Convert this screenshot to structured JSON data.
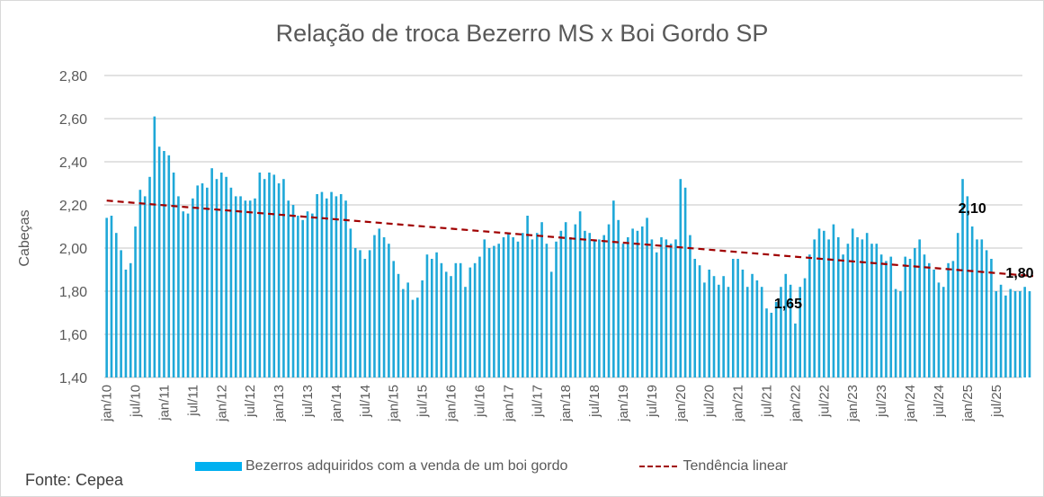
{
  "chart_data": {
    "type": "bar",
    "title": "Relação de troca Bezerro MS x Boi Gordo SP",
    "xlabel": "",
    "ylabel": "Cabeças",
    "ylim": [
      1.4,
      2.8
    ],
    "yticks": [
      "1,40",
      "1,60",
      "1,80",
      "2,00",
      "2,20",
      "2,40",
      "2,60",
      "2,80"
    ],
    "ytick_values": [
      1.4,
      1.6,
      1.8,
      2.0,
      2.2,
      2.4,
      2.6,
      2.8
    ],
    "grid": true,
    "start_month": "jan/10",
    "x_tick_labels": [
      "jan/10",
      "jul/10",
      "jan/11",
      "jul/11",
      "jan/12",
      "jul/12",
      "jan/13",
      "jul/13",
      "jan/14",
      "jul/14",
      "jan/15",
      "jul/15",
      "jan/16",
      "jul/16",
      "jan/17",
      "jul/17",
      "jan/18",
      "jul/18",
      "jan/19",
      "jul/19",
      "jan/20",
      "jul/20",
      "jan/21",
      "jul/21",
      "jan/22",
      "jul/22",
      "jan/23",
      "jul/23",
      "jan/24",
      "jul/24",
      "jan/25",
      "jul/25"
    ],
    "series": [
      {
        "name": "Bezerros adquiridos com a venda de um boi gordo",
        "type": "bar",
        "color": "#00b0f0",
        "values": [
          2.14,
          2.15,
          2.07,
          1.99,
          1.9,
          1.93,
          2.1,
          2.27,
          2.24,
          2.33,
          2.61,
          2.47,
          2.45,
          2.43,
          2.35,
          2.24,
          2.17,
          2.16,
          2.23,
          2.29,
          2.3,
          2.28,
          2.37,
          2.32,
          2.35,
          2.33,
          2.28,
          2.24,
          2.24,
          2.22,
          2.22,
          2.23,
          2.35,
          2.32,
          2.35,
          2.34,
          2.3,
          2.32,
          2.22,
          2.2,
          2.15,
          2.13,
          2.17,
          2.16,
          2.25,
          2.26,
          2.23,
          2.26,
          2.24,
          2.25,
          2.22,
          2.09,
          2.0,
          1.99,
          1.95,
          1.99,
          2.06,
          2.09,
          2.05,
          2.02,
          1.94,
          1.88,
          1.81,
          1.84,
          1.76,
          1.77,
          1.85,
          1.97,
          1.95,
          1.98,
          1.93,
          1.89,
          1.87,
          1.93,
          1.93,
          1.82,
          1.91,
          1.93,
          1.96,
          2.04,
          2.0,
          2.01,
          2.02,
          2.05,
          2.07,
          2.05,
          2.03,
          2.07,
          2.15,
          2.04,
          2.07,
          2.12,
          2.02,
          1.89,
          2.03,
          2.08,
          2.12,
          2.05,
          2.11,
          2.17,
          2.08,
          2.07,
          2.04,
          2.04,
          2.06,
          2.11,
          2.22,
          2.13,
          2.02,
          2.05,
          2.09,
          2.08,
          2.1,
          2.14,
          2.04,
          1.98,
          2.05,
          2.04,
          2.02,
          2.04,
          2.32,
          2.28,
          2.06,
          1.95,
          1.92,
          1.84,
          1.9,
          1.87,
          1.83,
          1.87,
          1.82,
          1.95,
          1.95,
          1.9,
          1.82,
          1.88,
          1.85,
          1.82,
          1.72,
          1.7,
          1.75,
          1.82,
          1.88,
          1.83,
          1.65,
          1.82,
          1.86,
          1.97,
          2.04,
          2.09,
          2.08,
          2.04,
          2.11,
          2.05,
          1.97,
          2.02,
          2.09,
          2.05,
          2.04,
          2.07,
          2.02,
          2.02,
          1.97,
          1.94,
          1.96,
          1.81,
          1.8,
          1.96,
          1.95,
          2.0,
          2.04,
          1.97,
          1.93,
          1.9,
          1.84,
          1.82,
          1.93,
          1.94,
          2.07,
          2.32,
          2.24,
          2.1,
          2.04,
          2.04,
          1.99,
          1.95,
          1.8,
          1.83,
          1.78,
          1.81,
          1.8,
          1.8,
          1.82,
          1.8
        ]
      },
      {
        "name": "Tendência linear",
        "type": "line",
        "style": "dashed",
        "color": "#a00000",
        "start_value": 2.22,
        "end_value": 1.87
      }
    ],
    "annotations": [
      {
        "text": "2,10",
        "month_index": 181,
        "value": 2.1
      },
      {
        "text": "1,65",
        "month_index": 144,
        "value": 1.65
      },
      {
        "text": "1,80",
        "month_index": 193,
        "value": 1.8
      }
    ],
    "legend": {
      "position": "bottom",
      "entries": [
        "Bezerros adquiridos com a venda de um boi gordo",
        "Tendência linear"
      ]
    },
    "source": "Fonte: Cepea"
  }
}
